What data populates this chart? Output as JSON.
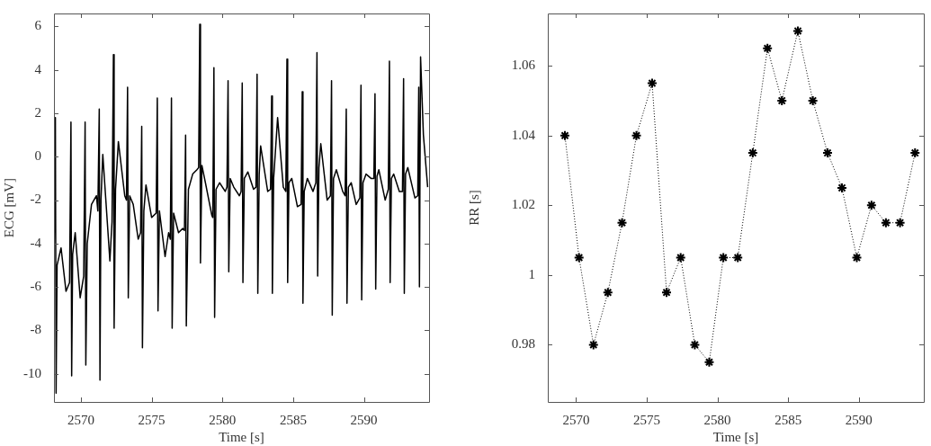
{
  "chart_data": [
    {
      "type": "line",
      "xlabel": "Time [s]",
      "ylabel": "ECG [mV]",
      "color": "#000000",
      "xlim": [
        2568.1,
        2594.6
      ],
      "ylim": [
        -11.3,
        6.6
      ],
      "xticks": [
        2570,
        2575,
        2580,
        2585,
        2590
      ],
      "yticks": [
        -10,
        -8,
        -6,
        -4,
        -2,
        0,
        2,
        4,
        6
      ],
      "x": [
        2568.1,
        2568.2,
        2568.25,
        2568.32,
        2568.6,
        2568.95,
        2569.2,
        2569.3,
        2569.35,
        2569.42,
        2569.6,
        2569.95,
        2570.2,
        2570.3,
        2570.35,
        2570.45,
        2570.75,
        2571.1,
        2571.2,
        2571.3,
        2571.35,
        2571.42,
        2571.55,
        2572.05,
        2572.2,
        2572.3,
        2572.35,
        2572.45,
        2572.65,
        2573.1,
        2573.22,
        2573.3,
        2573.35,
        2573.45,
        2573.7,
        2574.05,
        2574.22,
        2574.3,
        2574.35,
        2574.45,
        2574.6,
        2575.0,
        2575.32,
        2575.4,
        2575.45,
        2575.55,
        2575.95,
        2576.2,
        2576.32,
        2576.4,
        2576.45,
        2576.55,
        2576.9,
        2577.2,
        2577.32,
        2577.4,
        2577.45,
        2577.6,
        2577.9,
        2578.2,
        2578.32,
        2578.4,
        2578.45,
        2578.55,
        2578.8,
        2579.25,
        2579.32,
        2579.4,
        2579.45,
        2579.55,
        2579.8,
        2580.2,
        2580.32,
        2580.4,
        2580.45,
        2580.55,
        2580.8,
        2581.2,
        2581.32,
        2581.4,
        2581.45,
        2581.55,
        2581.8,
        2582.2,
        2582.37,
        2582.45,
        2582.5,
        2582.6,
        2582.7,
        2583.2,
        2583.4,
        2583.48,
        2583.53,
        2583.62,
        2583.9,
        2584.3,
        2584.48,
        2584.56,
        2584.61,
        2584.7,
        2584.9,
        2585.3,
        2585.56,
        2585.64,
        2585.69,
        2585.78,
        2586.0,
        2586.4,
        2586.6,
        2586.68,
        2586.73,
        2586.82,
        2586.95,
        2587.4,
        2587.63,
        2587.71,
        2587.76,
        2587.85,
        2588.05,
        2588.5,
        2588.67,
        2588.75,
        2588.8,
        2588.9,
        2589.1,
        2589.45,
        2589.71,
        2589.79,
        2589.84,
        2589.93,
        2590.15,
        2590.5,
        2590.7,
        2590.78,
        2590.83,
        2590.92,
        2591.05,
        2591.5,
        2591.72,
        2591.8,
        2591.85,
        2591.94,
        2592.1,
        2592.5,
        2592.72,
        2592.8,
        2592.85,
        2592.94,
        2593.1,
        2593.6,
        2593.8,
        2593.87,
        2593.92,
        2594.0,
        2594.2,
        2594.5
      ],
      "values": [
        -5.2,
        1.8,
        -10.9,
        -5.0,
        -4.2,
        -6.2,
        -5.8,
        1.6,
        -10.1,
        -4.5,
        -3.5,
        -6.5,
        -5.5,
        1.6,
        -9.6,
        -4.0,
        -2.2,
        -1.8,
        -2.5,
        2.2,
        -10.3,
        -2.0,
        0.1,
        -4.8,
        -3.0,
        4.7,
        -7.9,
        -1.5,
        0.7,
        -1.8,
        -2.0,
        3.2,
        -6.5,
        -1.8,
        -2.2,
        -3.8,
        -3.5,
        1.4,
        -8.8,
        -2.5,
        -1.3,
        -2.8,
        -2.6,
        2.7,
        -7.1,
        -2.5,
        -4.6,
        -3.5,
        -3.8,
        2.7,
        -7.9,
        -2.6,
        -3.5,
        -3.3,
        -3.4,
        1.0,
        -7.8,
        -1.5,
        -0.8,
        -0.6,
        -0.5,
        6.1,
        -4.9,
        -0.4,
        -1.2,
        -2.7,
        -2.8,
        4.1,
        -7.4,
        -1.5,
        -1.2,
        -1.6,
        -1.4,
        3.5,
        -5.3,
        -1.0,
        -1.4,
        -1.8,
        -1.6,
        3.4,
        -5.8,
        -1.0,
        -0.7,
        -1.5,
        -1.4,
        3.8,
        -6.3,
        -0.8,
        0.5,
        -1.6,
        -1.5,
        2.8,
        -6.3,
        -1.0,
        1.8,
        -1.4,
        -1.6,
        4.5,
        -5.8,
        -1.2,
        -1.0,
        -2.3,
        -2.2,
        3.0,
        -6.75,
        -1.6,
        -1.0,
        -1.6,
        -1.2,
        4.8,
        -5.5,
        -0.5,
        0.6,
        -2.0,
        -1.8,
        3.5,
        -7.3,
        -1.0,
        -0.6,
        -1.6,
        -1.8,
        2.2,
        -6.75,
        -1.4,
        -1.2,
        -2.2,
        -1.9,
        3.3,
        -6.6,
        -1.2,
        -0.8,
        -1.0,
        -1.0,
        2.9,
        -6.1,
        -0.9,
        -0.6,
        -2.0,
        -1.5,
        4.4,
        -5.8,
        -1.0,
        -0.8,
        -1.6,
        -1.6,
        3.6,
        -6.3,
        -0.8,
        -0.5,
        -1.9,
        -1.8,
        3.2,
        -6.0,
        4.6,
        1.0,
        -1.4
      ]
    },
    {
      "type": "line",
      "xlabel": "Time [s]",
      "ylabel": "RR [s]",
      "color": "#000000",
      "marker": "cross",
      "line_style": "dotted",
      "xlim": [
        2568.0,
        2594.6
      ],
      "ylim": [
        0.9636,
        1.075
      ],
      "xticks": [
        2570,
        2575,
        2580,
        2585,
        2590
      ],
      "yticks": [
        0.98,
        1,
        1.02,
        1.04,
        1.06
      ],
      "x": [
        2569.21,
        2570.21,
        2571.23,
        2572.25,
        2573.25,
        2574.27,
        2575.38,
        2576.4,
        2577.4,
        2578.4,
        2579.42,
        2580.42,
        2581.44,
        2582.5,
        2583.54,
        2584.56,
        2585.69,
        2586.75,
        2587.79,
        2588.81,
        2589.86,
        2590.9,
        2591.92,
        2592.92,
        2593.98
      ],
      "values": [
        1.04,
        1.005,
        0.98,
        0.995,
        1.015,
        1.04,
        1.055,
        0.995,
        1.005,
        0.98,
        0.975,
        1.005,
        1.005,
        1.035,
        1.065,
        1.05,
        1.07,
        1.05,
        1.035,
        1.025,
        1.005,
        1.02,
        1.015,
        1.015,
        1.035
      ]
    }
  ]
}
